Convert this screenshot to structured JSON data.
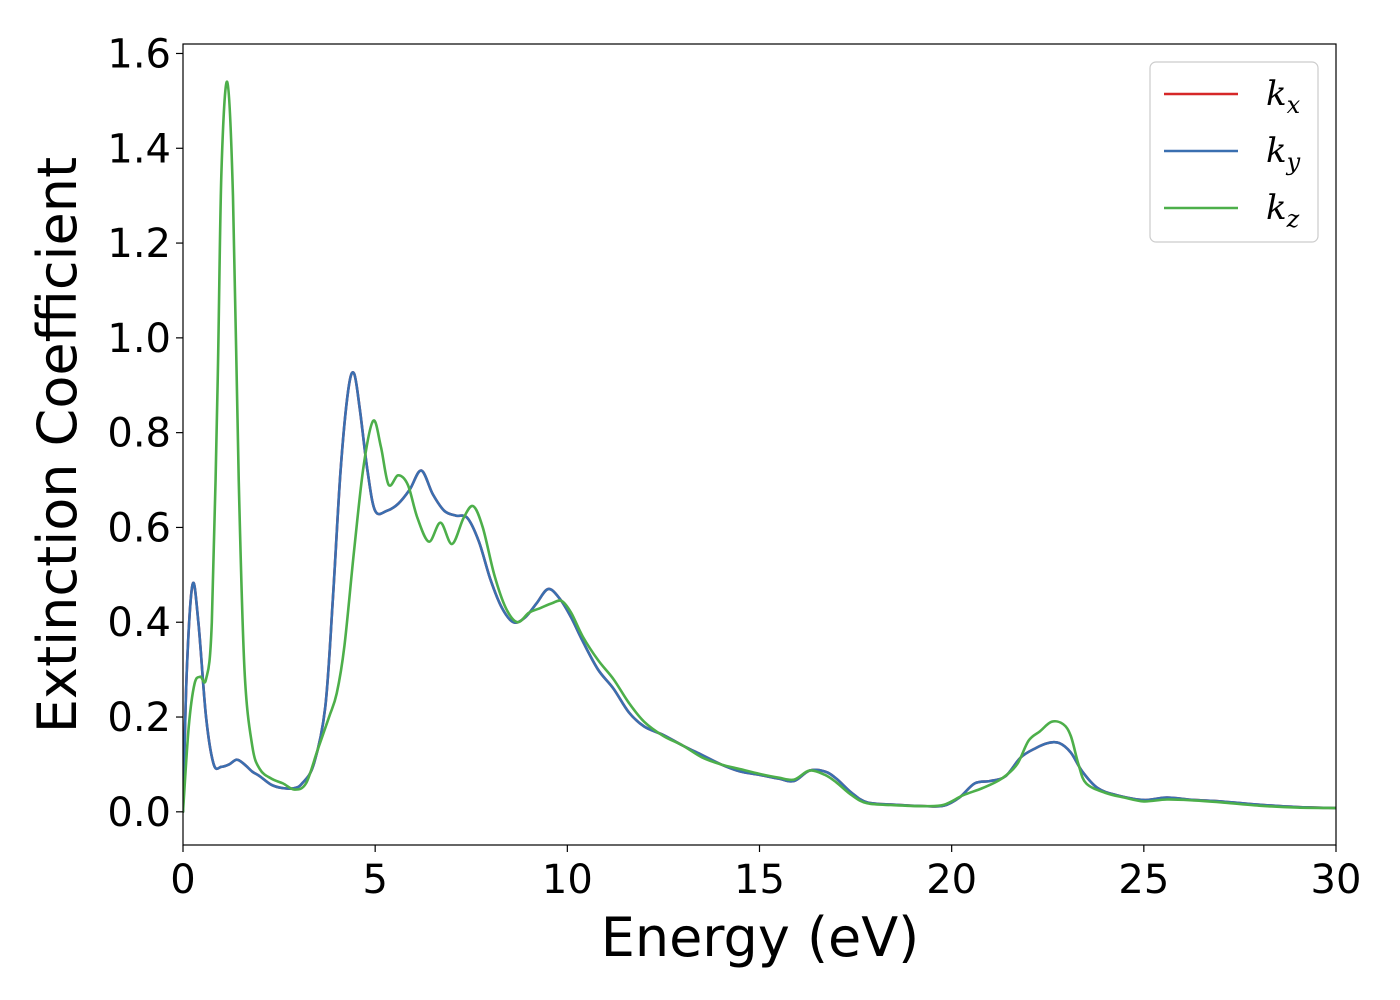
{
  "chart_data": {
    "type": "line",
    "xlabel": "Energy (eV)",
    "ylabel": "Extinction Coefficient",
    "xlim": [
      0,
      30
    ],
    "ylim": [
      -0.07,
      1.62
    ],
    "xticks": [
      0,
      5,
      10,
      15,
      20,
      25,
      30
    ],
    "xtick_labels": [
      "0",
      "5",
      "10",
      "15",
      "20",
      "25",
      "30"
    ],
    "yticks": [
      0.0,
      0.2,
      0.4,
      0.6,
      0.8,
      1.0,
      1.2,
      1.4,
      1.6
    ],
    "ytick_labels": [
      "0.0",
      "0.2",
      "0.4",
      "0.6",
      "0.8",
      "1.0",
      "1.2",
      "1.4",
      "1.6"
    ],
    "grid": false,
    "legend_position": "top-right",
    "series": [
      {
        "name": "k_x",
        "label_base": "k",
        "label_sub": "x",
        "color": "#d62728",
        "x": [
          0,
          0.1,
          0.25,
          0.4,
          0.6,
          0.8,
          1.0,
          1.2,
          1.4,
          1.6,
          1.8,
          2.0,
          2.3,
          2.6,
          2.9,
          3.1,
          3.4,
          3.7,
          3.9,
          4.1,
          4.3,
          4.45,
          4.6,
          4.8,
          5.0,
          5.3,
          5.6,
          5.9,
          6.2,
          6.5,
          6.8,
          7.1,
          7.4,
          7.7,
          8.0,
          8.3,
          8.6,
          8.9,
          9.2,
          9.5,
          9.8,
          10.1,
          10.4,
          10.8,
          11.2,
          11.6,
          12.0,
          12.5,
          13.0,
          13.5,
          14.0,
          14.5,
          15.0,
          15.5,
          15.9,
          16.3,
          16.7,
          17.0,
          17.4,
          17.8,
          18.5,
          19.3,
          19.8,
          20.2,
          20.6,
          21.0,
          21.4,
          21.8,
          22.2,
          22.5,
          22.8,
          23.1,
          23.4,
          23.8,
          24.3,
          25.0,
          25.6,
          26.3,
          27.0,
          28.0,
          29.0,
          30.0
        ],
        "y": [
          0.0,
          0.3,
          0.48,
          0.4,
          0.2,
          0.1,
          0.095,
          0.1,
          0.11,
          0.1,
          0.085,
          0.075,
          0.057,
          0.05,
          0.05,
          0.06,
          0.1,
          0.22,
          0.45,
          0.72,
          0.89,
          0.925,
          0.85,
          0.72,
          0.635,
          0.635,
          0.65,
          0.68,
          0.72,
          0.67,
          0.635,
          0.625,
          0.62,
          0.57,
          0.49,
          0.43,
          0.4,
          0.41,
          0.44,
          0.47,
          0.45,
          0.41,
          0.36,
          0.3,
          0.26,
          0.21,
          0.18,
          0.162,
          0.14,
          0.12,
          0.1,
          0.085,
          0.078,
          0.07,
          0.065,
          0.087,
          0.085,
          0.07,
          0.04,
          0.02,
          0.015,
          0.012,
          0.013,
          0.03,
          0.06,
          0.065,
          0.075,
          0.115,
          0.135,
          0.145,
          0.145,
          0.125,
          0.085,
          0.05,
          0.035,
          0.025,
          0.03,
          0.025,
          0.022,
          0.015,
          0.01,
          0.008
        ]
      },
      {
        "name": "k_y",
        "label_base": "k",
        "label_sub": "y",
        "color": "#3a6fb0",
        "x": [
          0,
          0.1,
          0.25,
          0.4,
          0.6,
          0.8,
          1.0,
          1.2,
          1.4,
          1.6,
          1.8,
          2.0,
          2.3,
          2.6,
          2.9,
          3.1,
          3.4,
          3.7,
          3.9,
          4.1,
          4.3,
          4.45,
          4.6,
          4.8,
          5.0,
          5.3,
          5.6,
          5.9,
          6.2,
          6.5,
          6.8,
          7.1,
          7.4,
          7.7,
          8.0,
          8.3,
          8.6,
          8.9,
          9.2,
          9.5,
          9.8,
          10.1,
          10.4,
          10.8,
          11.2,
          11.6,
          12.0,
          12.5,
          13.0,
          13.5,
          14.0,
          14.5,
          15.0,
          15.5,
          15.9,
          16.3,
          16.7,
          17.0,
          17.4,
          17.8,
          18.5,
          19.3,
          19.8,
          20.2,
          20.6,
          21.0,
          21.4,
          21.8,
          22.2,
          22.5,
          22.8,
          23.1,
          23.4,
          23.8,
          24.3,
          25.0,
          25.6,
          26.3,
          27.0,
          28.0,
          29.0,
          30.0
        ],
        "y": [
          0.0,
          0.3,
          0.48,
          0.4,
          0.2,
          0.1,
          0.095,
          0.1,
          0.11,
          0.1,
          0.085,
          0.075,
          0.057,
          0.05,
          0.05,
          0.06,
          0.1,
          0.22,
          0.45,
          0.72,
          0.89,
          0.925,
          0.85,
          0.72,
          0.635,
          0.635,
          0.65,
          0.68,
          0.72,
          0.67,
          0.635,
          0.625,
          0.62,
          0.57,
          0.49,
          0.43,
          0.4,
          0.41,
          0.44,
          0.47,
          0.45,
          0.41,
          0.36,
          0.3,
          0.26,
          0.21,
          0.18,
          0.162,
          0.14,
          0.12,
          0.1,
          0.085,
          0.078,
          0.07,
          0.065,
          0.087,
          0.085,
          0.07,
          0.04,
          0.02,
          0.015,
          0.012,
          0.013,
          0.03,
          0.06,
          0.065,
          0.075,
          0.115,
          0.135,
          0.145,
          0.145,
          0.125,
          0.085,
          0.05,
          0.035,
          0.025,
          0.03,
          0.025,
          0.022,
          0.015,
          0.01,
          0.008
        ]
      },
      {
        "name": "k_z",
        "label_base": "k",
        "label_sub": "z",
        "color": "#4daf4a",
        "x": [
          0,
          0.15,
          0.3,
          0.45,
          0.6,
          0.75,
          0.9,
          1.0,
          1.15,
          1.3,
          1.45,
          1.6,
          1.8,
          2.0,
          2.3,
          2.6,
          2.9,
          3.2,
          3.5,
          3.8,
          4.0,
          4.2,
          4.45,
          4.7,
          4.95,
          5.15,
          5.35,
          5.6,
          5.85,
          6.1,
          6.4,
          6.7,
          7.0,
          7.3,
          7.55,
          7.8,
          8.1,
          8.4,
          8.7,
          9.0,
          9.3,
          9.6,
          9.85,
          10.1,
          10.4,
          10.8,
          11.2,
          11.6,
          12.0,
          12.5,
          13.0,
          13.5,
          14.0,
          14.5,
          15.0,
          15.5,
          15.9,
          16.3,
          16.7,
          17.0,
          17.4,
          17.8,
          18.5,
          19.3,
          19.8,
          20.3,
          20.8,
          21.3,
          21.7,
          22.0,
          22.3,
          22.6,
          22.9,
          23.1,
          23.3,
          23.5,
          24.0,
          24.5,
          25.0,
          25.6,
          26.3,
          27.0,
          28.0,
          29.0,
          30.0
        ],
        "y": [
          0.0,
          0.18,
          0.27,
          0.285,
          0.28,
          0.4,
          0.9,
          1.35,
          1.54,
          1.3,
          0.7,
          0.3,
          0.14,
          0.09,
          0.07,
          0.06,
          0.047,
          0.06,
          0.13,
          0.2,
          0.25,
          0.35,
          0.55,
          0.73,
          0.825,
          0.77,
          0.69,
          0.71,
          0.69,
          0.62,
          0.57,
          0.61,
          0.565,
          0.62,
          0.645,
          0.6,
          0.5,
          0.43,
          0.4,
          0.42,
          0.43,
          0.44,
          0.445,
          0.42,
          0.37,
          0.32,
          0.28,
          0.23,
          0.19,
          0.16,
          0.14,
          0.115,
          0.1,
          0.09,
          0.08,
          0.072,
          0.068,
          0.087,
          0.078,
          0.062,
          0.035,
          0.018,
          0.014,
          0.012,
          0.015,
          0.035,
          0.05,
          0.07,
          0.1,
          0.15,
          0.17,
          0.19,
          0.185,
          0.16,
          0.1,
          0.06,
          0.04,
          0.03,
          0.022,
          0.026,
          0.024,
          0.02,
          0.013,
          0.009,
          0.008
        ]
      }
    ]
  }
}
